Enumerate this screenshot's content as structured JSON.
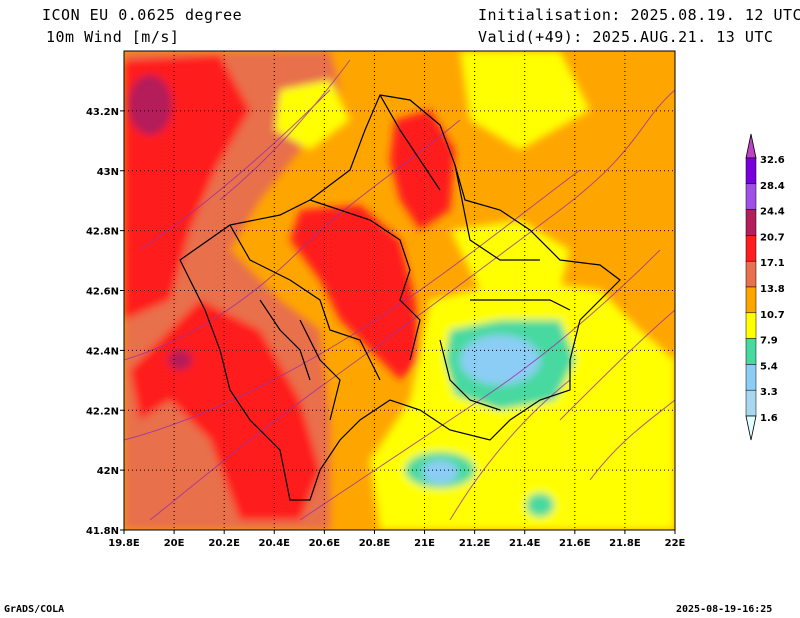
{
  "header": {
    "model": "ICON EU 0.0625 degree",
    "variable": "10m Wind [m/s]",
    "init": "Initialisation: 2025.08.19. 12 UTC",
    "valid": "Valid(+49): 2025.AUG.21. 13 UTC"
  },
  "map": {
    "lon_ticks": [
      "19.8E",
      "20E",
      "20.2E",
      "20.4E",
      "20.6E",
      "20.8E",
      "21E",
      "21.2E",
      "21.4E",
      "21.6E",
      "21.8E",
      "22E"
    ],
    "lat_ticks": [
      "43.2N",
      "43N",
      "42.8N",
      "42.6N",
      "42.4N",
      "42.2N",
      "42N",
      "41.8N"
    ],
    "lon_range": [
      19.8,
      22.0
    ],
    "lat_range": [
      41.8,
      43.4
    ],
    "grid": "dotted"
  },
  "colorbar": {
    "labels": [
      "1.6",
      "3.3",
      "5.4",
      "7.9",
      "10.7",
      "13.8",
      "17.1",
      "20.7",
      "24.4",
      "28.4",
      "32.6"
    ],
    "colors": [
      "#e0ffff",
      "#a8d8f0",
      "#8ccdf5",
      "#46d9a0",
      "#ffff00",
      "#ffa500",
      "#e8704c",
      "#ff1e1e",
      "#b41e5a",
      "#a050e6",
      "#7800dc",
      "#c040c8"
    ]
  },
  "footer": {
    "left": "GrADS/COLA",
    "right": "2025-08-19-16:25"
  }
}
